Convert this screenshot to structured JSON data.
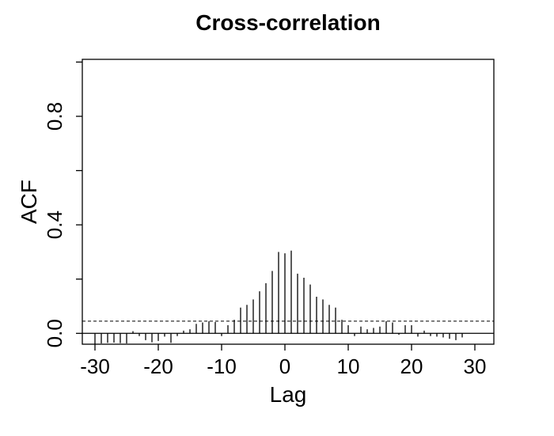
{
  "chart_data": {
    "type": "bar",
    "title": "Cross-correlation",
    "xlabel": "Lag",
    "ylabel": "ACF",
    "xlim": [
      -32,
      33
    ],
    "ylim": [
      -0.04,
      1.01
    ],
    "x_ticks": [
      -30,
      -20,
      -10,
      0,
      10,
      20,
      30
    ],
    "y_ticks": [
      0.0,
      0.4,
      0.8
    ],
    "y_tick_labels": [
      "0.0",
      "0.4",
      "0.8"
    ],
    "y_minor_ticks": [
      0.2,
      0.6,
      1.0
    ],
    "confidence_bound": 0.045,
    "grid": false,
    "lags": [
      -30,
      -29,
      -28,
      -27,
      -26,
      -25,
      -24,
      -23,
      -22,
      -21,
      -20,
      -19,
      -18,
      -17,
      -16,
      -15,
      -14,
      -13,
      -12,
      -11,
      -10,
      -9,
      -8,
      -7,
      -6,
      -5,
      -4,
      -3,
      -2,
      -1,
      0,
      1,
      2,
      3,
      4,
      5,
      6,
      7,
      8,
      9,
      10,
      11,
      12,
      13,
      14,
      15,
      16,
      17,
      18,
      19,
      20,
      21,
      22,
      23,
      24,
      25,
      26,
      27,
      28
    ],
    "values": [
      -0.04,
      -0.037,
      -0.035,
      -0.034,
      -0.036,
      -0.037,
      0.008,
      -0.01,
      -0.025,
      -0.033,
      -0.028,
      -0.012,
      -0.035,
      -0.01,
      0.01,
      0.015,
      0.035,
      0.04,
      0.045,
      0.042,
      -0.01,
      0.03,
      0.05,
      0.095,
      0.105,
      0.125,
      0.155,
      0.185,
      0.23,
      0.3,
      0.295,
      0.305,
      0.22,
      0.205,
      0.18,
      0.135,
      0.125,
      0.105,
      0.095,
      0.05,
      0.03,
      -0.01,
      0.025,
      0.015,
      0.02,
      0.025,
      0.045,
      0.04,
      -0.005,
      0.03,
      0.03,
      -0.012,
      0.01,
      -0.01,
      -0.012,
      -0.015,
      -0.02,
      -0.025,
      -0.015
    ]
  }
}
